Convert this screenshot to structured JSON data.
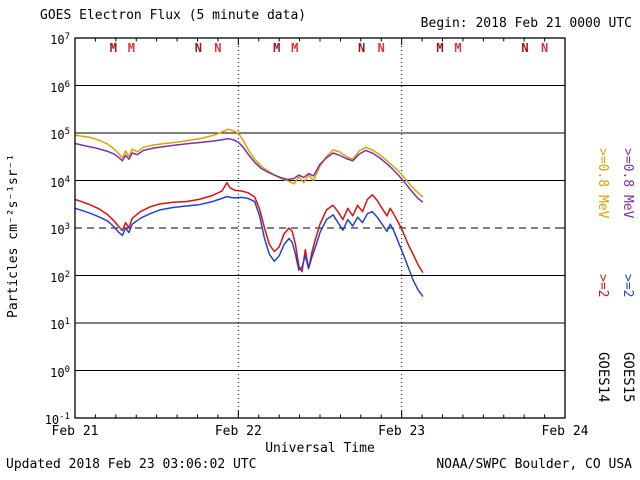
{
  "header": {
    "title": "GOES Electron Flux (5 minute data)",
    "begin_label": "Begin: 2018 Feb 21 0000 UTC"
  },
  "footer": {
    "updated": "Updated 2018 Feb 23 03:06:02 UTC",
    "credit": "NOAA/SWPC Boulder, CO USA"
  },
  "chart_data": {
    "type": "line",
    "title": "GOES Electron Flux (5 minute data)",
    "xlabel": "Universal Time",
    "ylabel": "Particles cm⁻²s⁻¹sr⁻¹",
    "x_axis": {
      "unit": "days since 2018 Feb 21 0000 UTC",
      "min": 0,
      "max": 3,
      "ticks": [
        {
          "t": 0,
          "label": "Feb 21"
        },
        {
          "t": 1,
          "label": "Feb 22"
        },
        {
          "t": 2,
          "label": "Feb 23"
        },
        {
          "t": 3,
          "label": "Feb 24"
        }
      ],
      "minor_tick_hours": 3,
      "day_gridlines": [
        1,
        2
      ]
    },
    "y_axis": {
      "scale": "log",
      "exp_min": -1,
      "exp_max": 7,
      "threshold_dashed_exp": 3
    },
    "top_markers": {
      "days": [
        0,
        1,
        2
      ],
      "M_fractions": [
        0.235,
        0.345
      ],
      "N_fractions": [
        0.755,
        0.875
      ],
      "colors": [
        "#991111",
        "#DD3333"
      ],
      "labels": [
        "M",
        "N"
      ]
    },
    "legend": {
      "columns": [
        {
          "satellite": "GOES14",
          "e08_label": ">=0.8 MeV",
          "e08_color": "#E0A000",
          "e2_label": ">=2",
          "e2_color": "#DD1111"
        },
        {
          "satellite": "GOES15",
          "e08_label": ">=0.8 MeV",
          "e08_color": "#7733AA",
          "e2_label": ">=2",
          "e2_color": "#2244CC"
        }
      ]
    },
    "series": [
      {
        "name": "GOES14 >=0.8 MeV",
        "satellite": "GOES14",
        "energy": ">=0.8 MeV",
        "color": "#E0A000",
        "points": [
          [
            0.0,
            90000.0
          ],
          [
            0.04,
            86000.0
          ],
          [
            0.08,
            82000.0
          ],
          [
            0.12,
            76000.0
          ],
          [
            0.16,
            68000.0
          ],
          [
            0.2,
            58000.0
          ],
          [
            0.24,
            46000.0
          ],
          [
            0.27,
            36000.0
          ],
          [
            0.29,
            30000.0
          ],
          [
            0.31,
            42000.0
          ],
          [
            0.33,
            32000.0
          ],
          [
            0.35,
            46000.0
          ],
          [
            0.38,
            40000.0
          ],
          [
            0.42,
            50000.0
          ],
          [
            0.48,
            56000.0
          ],
          [
            0.55,
            60000.0
          ],
          [
            0.62,
            64000.0
          ],
          [
            0.7,
            70000.0
          ],
          [
            0.78,
            78000.0
          ],
          [
            0.85,
            90000.0
          ],
          [
            0.9,
            105000.0
          ],
          [
            0.94,
            120000.0
          ],
          [
            0.97,
            110000.0
          ],
          [
            1.0,
            100000.0
          ],
          [
            1.03,
            70000.0
          ],
          [
            1.06,
            45000.0
          ],
          [
            1.1,
            28000.0
          ],
          [
            1.14,
            20000.0
          ],
          [
            1.18,
            16000.0
          ],
          [
            1.22,
            13000.0
          ],
          [
            1.26,
            11000.0
          ],
          [
            1.3,
            10000.0
          ],
          [
            1.34,
            8500.0
          ],
          [
            1.37,
            12000.0
          ],
          [
            1.4,
            9000.0
          ],
          [
            1.43,
            13000.0
          ],
          [
            1.46,
            10000.0
          ],
          [
            1.5,
            20000.0
          ],
          [
            1.54,
            32000.0
          ],
          [
            1.58,
            44000.0
          ],
          [
            1.62,
            40000.0
          ],
          [
            1.66,
            32000.0
          ],
          [
            1.7,
            28000.0
          ],
          [
            1.74,
            42000.0
          ],
          [
            1.78,
            50000.0
          ],
          [
            1.82,
            44000.0
          ],
          [
            1.86,
            36000.0
          ],
          [
            1.9,
            28000.0
          ],
          [
            1.94,
            21000.0
          ],
          [
            1.98,
            16000.0
          ],
          [
            2.02,
            11000.0
          ],
          [
            2.06,
            7500.0
          ],
          [
            2.1,
            5500.0
          ],
          [
            2.13,
            4500.0
          ]
        ]
      },
      {
        "name": "GOES15 >=0.8 MeV",
        "satellite": "GOES15",
        "energy": ">=0.8 MeV",
        "color": "#7733AA",
        "points": [
          [
            0.0,
            60000.0
          ],
          [
            0.04,
            56000.0
          ],
          [
            0.08,
            52000.0
          ],
          [
            0.12,
            49000.0
          ],
          [
            0.16,
            45000.0
          ],
          [
            0.2,
            41000.0
          ],
          [
            0.24,
            36000.0
          ],
          [
            0.27,
            30000.0
          ],
          [
            0.29,
            26000.0
          ],
          [
            0.31,
            34000.0
          ],
          [
            0.33,
            28000.0
          ],
          [
            0.35,
            38000.0
          ],
          [
            0.38,
            35000.0
          ],
          [
            0.42,
            43000.0
          ],
          [
            0.48,
            48000.0
          ],
          [
            0.55,
            52000.0
          ],
          [
            0.62,
            56000.0
          ],
          [
            0.7,
            60000.0
          ],
          [
            0.78,
            64000.0
          ],
          [
            0.85,
            68000.0
          ],
          [
            0.9,
            72000.0
          ],
          [
            0.94,
            76000.0
          ],
          [
            0.97,
            72000.0
          ],
          [
            1.0,
            64000.0
          ],
          [
            1.03,
            50000.0
          ],
          [
            1.06,
            36000.0
          ],
          [
            1.1,
            24000.0
          ],
          [
            1.14,
            18000.0
          ],
          [
            1.18,
            15000.0
          ],
          [
            1.22,
            13000.0
          ],
          [
            1.26,
            11500.0
          ],
          [
            1.3,
            10500.0
          ],
          [
            1.34,
            11000.0
          ],
          [
            1.37,
            13000.0
          ],
          [
            1.4,
            11500.0
          ],
          [
            1.43,
            14000.0
          ],
          [
            1.46,
            12500.0
          ],
          [
            1.5,
            22000.0
          ],
          [
            1.54,
            30000.0
          ],
          [
            1.58,
            38000.0
          ],
          [
            1.62,
            34000.0
          ],
          [
            1.66,
            29000.0
          ],
          [
            1.7,
            26000.0
          ],
          [
            1.74,
            36000.0
          ],
          [
            1.78,
            43000.0
          ],
          [
            1.82,
            38000.0
          ],
          [
            1.86,
            31000.0
          ],
          [
            1.9,
            24000.0
          ],
          [
            1.94,
            18000.0
          ],
          [
            1.98,
            13000.0
          ],
          [
            2.02,
            9000.0
          ],
          [
            2.06,
            6000.0
          ],
          [
            2.1,
            4200.0
          ],
          [
            2.13,
            3500.0
          ]
        ]
      },
      {
        "name": "GOES14 >=2 MeV",
        "satellite": "GOES14",
        "energy": ">=2 MeV",
        "color": "#DD1111",
        "points": [
          [
            0.0,
            4000.0
          ],
          [
            0.05,
            3500.0
          ],
          [
            0.1,
            3000.0
          ],
          [
            0.15,
            2500.0
          ],
          [
            0.2,
            1900.0
          ],
          [
            0.24,
            1400.0
          ],
          [
            0.27,
            1050.0
          ],
          [
            0.29,
            880.0
          ],
          [
            0.31,
            1300.0
          ],
          [
            0.33,
            1000.0
          ],
          [
            0.35,
            1600.0
          ],
          [
            0.4,
            2200.0
          ],
          [
            0.46,
            2800.0
          ],
          [
            0.52,
            3200.0
          ],
          [
            0.6,
            3500.0
          ],
          [
            0.68,
            3600.0
          ],
          [
            0.76,
            4000.0
          ],
          [
            0.84,
            4800.0
          ],
          [
            0.9,
            6000.0
          ],
          [
            0.93,
            9000.0
          ],
          [
            0.95,
            7000.0
          ],
          [
            0.98,
            6200.0
          ],
          [
            1.02,
            6000.0
          ],
          [
            1.06,
            5500.0
          ],
          [
            1.1,
            4500.0
          ],
          [
            1.13,
            2500.0
          ],
          [
            1.16,
            1000.0
          ],
          [
            1.19,
            450.0
          ],
          [
            1.22,
            320.0
          ],
          [
            1.25,
            400.0
          ],
          [
            1.28,
            750.0
          ],
          [
            1.31,
            1000.0
          ],
          [
            1.33,
            850.0
          ],
          [
            1.35,
            450.0
          ],
          [
            1.37,
            160.0
          ],
          [
            1.39,
            120.0
          ],
          [
            1.41,
            350.0
          ],
          [
            1.43,
            140.0
          ],
          [
            1.45,
            300.0
          ],
          [
            1.47,
            550.0
          ],
          [
            1.5,
            1200.0
          ],
          [
            1.54,
            2400.0
          ],
          [
            1.58,
            3000.0
          ],
          [
            1.61,
            2200.0
          ],
          [
            1.64,
            1500.0
          ],
          [
            1.67,
            2600.0
          ],
          [
            1.7,
            1800.0
          ],
          [
            1.73,
            3000.0
          ],
          [
            1.76,
            2200.0
          ],
          [
            1.79,
            4000.0
          ],
          [
            1.82,
            5000.0
          ],
          [
            1.85,
            3800.0
          ],
          [
            1.88,
            2600.0
          ],
          [
            1.91,
            1800.0
          ],
          [
            1.93,
            2600.0
          ],
          [
            1.95,
            2000.0
          ],
          [
            1.98,
            1300.0
          ],
          [
            2.01,
            800.0
          ],
          [
            2.04,
            450.0
          ],
          [
            2.07,
            280.0
          ],
          [
            2.1,
            170.0
          ],
          [
            2.13,
            115.0
          ]
        ]
      },
      {
        "name": "GOES15 >=2 MeV",
        "satellite": "GOES15",
        "energy": ">=2 MeV",
        "color": "#2244CC",
        "points": [
          [
            0.0,
            2600.0
          ],
          [
            0.05,
            2300.0
          ],
          [
            0.1,
            2000.0
          ],
          [
            0.15,
            1700.0
          ],
          [
            0.2,
            1400.0
          ],
          [
            0.24,
            1050.0
          ],
          [
            0.27,
            800.0
          ],
          [
            0.29,
            700.0
          ],
          [
            0.31,
            1000.0
          ],
          [
            0.33,
            800.0
          ],
          [
            0.35,
            1200.0
          ],
          [
            0.4,
            1600.0
          ],
          [
            0.46,
            2000.0
          ],
          [
            0.52,
            2400.0
          ],
          [
            0.6,
            2700.0
          ],
          [
            0.68,
            2900.0
          ],
          [
            0.76,
            3100.0
          ],
          [
            0.84,
            3600.0
          ],
          [
            0.9,
            4200.0
          ],
          [
            0.93,
            4600.0
          ],
          [
            0.95,
            4400.0
          ],
          [
            0.98,
            4300.0
          ],
          [
            1.02,
            4400.0
          ],
          [
            1.06,
            4200.0
          ],
          [
            1.1,
            3600.0
          ],
          [
            1.13,
            1800.0
          ],
          [
            1.16,
            600.0
          ],
          [
            1.19,
            280.0
          ],
          [
            1.22,
            200.0
          ],
          [
            1.25,
            260.0
          ],
          [
            1.28,
            450.0
          ],
          [
            1.31,
            600.0
          ],
          [
            1.33,
            500.0
          ],
          [
            1.35,
            280.0
          ],
          [
            1.37,
            130.0
          ],
          [
            1.39,
            150.0
          ],
          [
            1.41,
            260.0
          ],
          [
            1.43,
            140.0
          ],
          [
            1.45,
            240.0
          ],
          [
            1.47,
            380.0
          ],
          [
            1.5,
            800.0
          ],
          [
            1.54,
            1500.0
          ],
          [
            1.58,
            1900.0
          ],
          [
            1.61,
            1300.0
          ],
          [
            1.64,
            900.0
          ],
          [
            1.67,
            1500.0
          ],
          [
            1.7,
            1100.0
          ],
          [
            1.73,
            1700.0
          ],
          [
            1.76,
            1300.0
          ],
          [
            1.79,
            2000.0
          ],
          [
            1.82,
            2200.0
          ],
          [
            1.85,
            1700.0
          ],
          [
            1.88,
            1200.0
          ],
          [
            1.91,
            850.0
          ],
          [
            1.93,
            1200.0
          ],
          [
            1.95,
            900.0
          ],
          [
            1.98,
            500.0
          ],
          [
            2.01,
            280.0
          ],
          [
            2.04,
            150.0
          ],
          [
            2.07,
            80.0
          ],
          [
            2.1,
            50.0
          ],
          [
            2.13,
            36.0
          ]
        ]
      }
    ]
  }
}
